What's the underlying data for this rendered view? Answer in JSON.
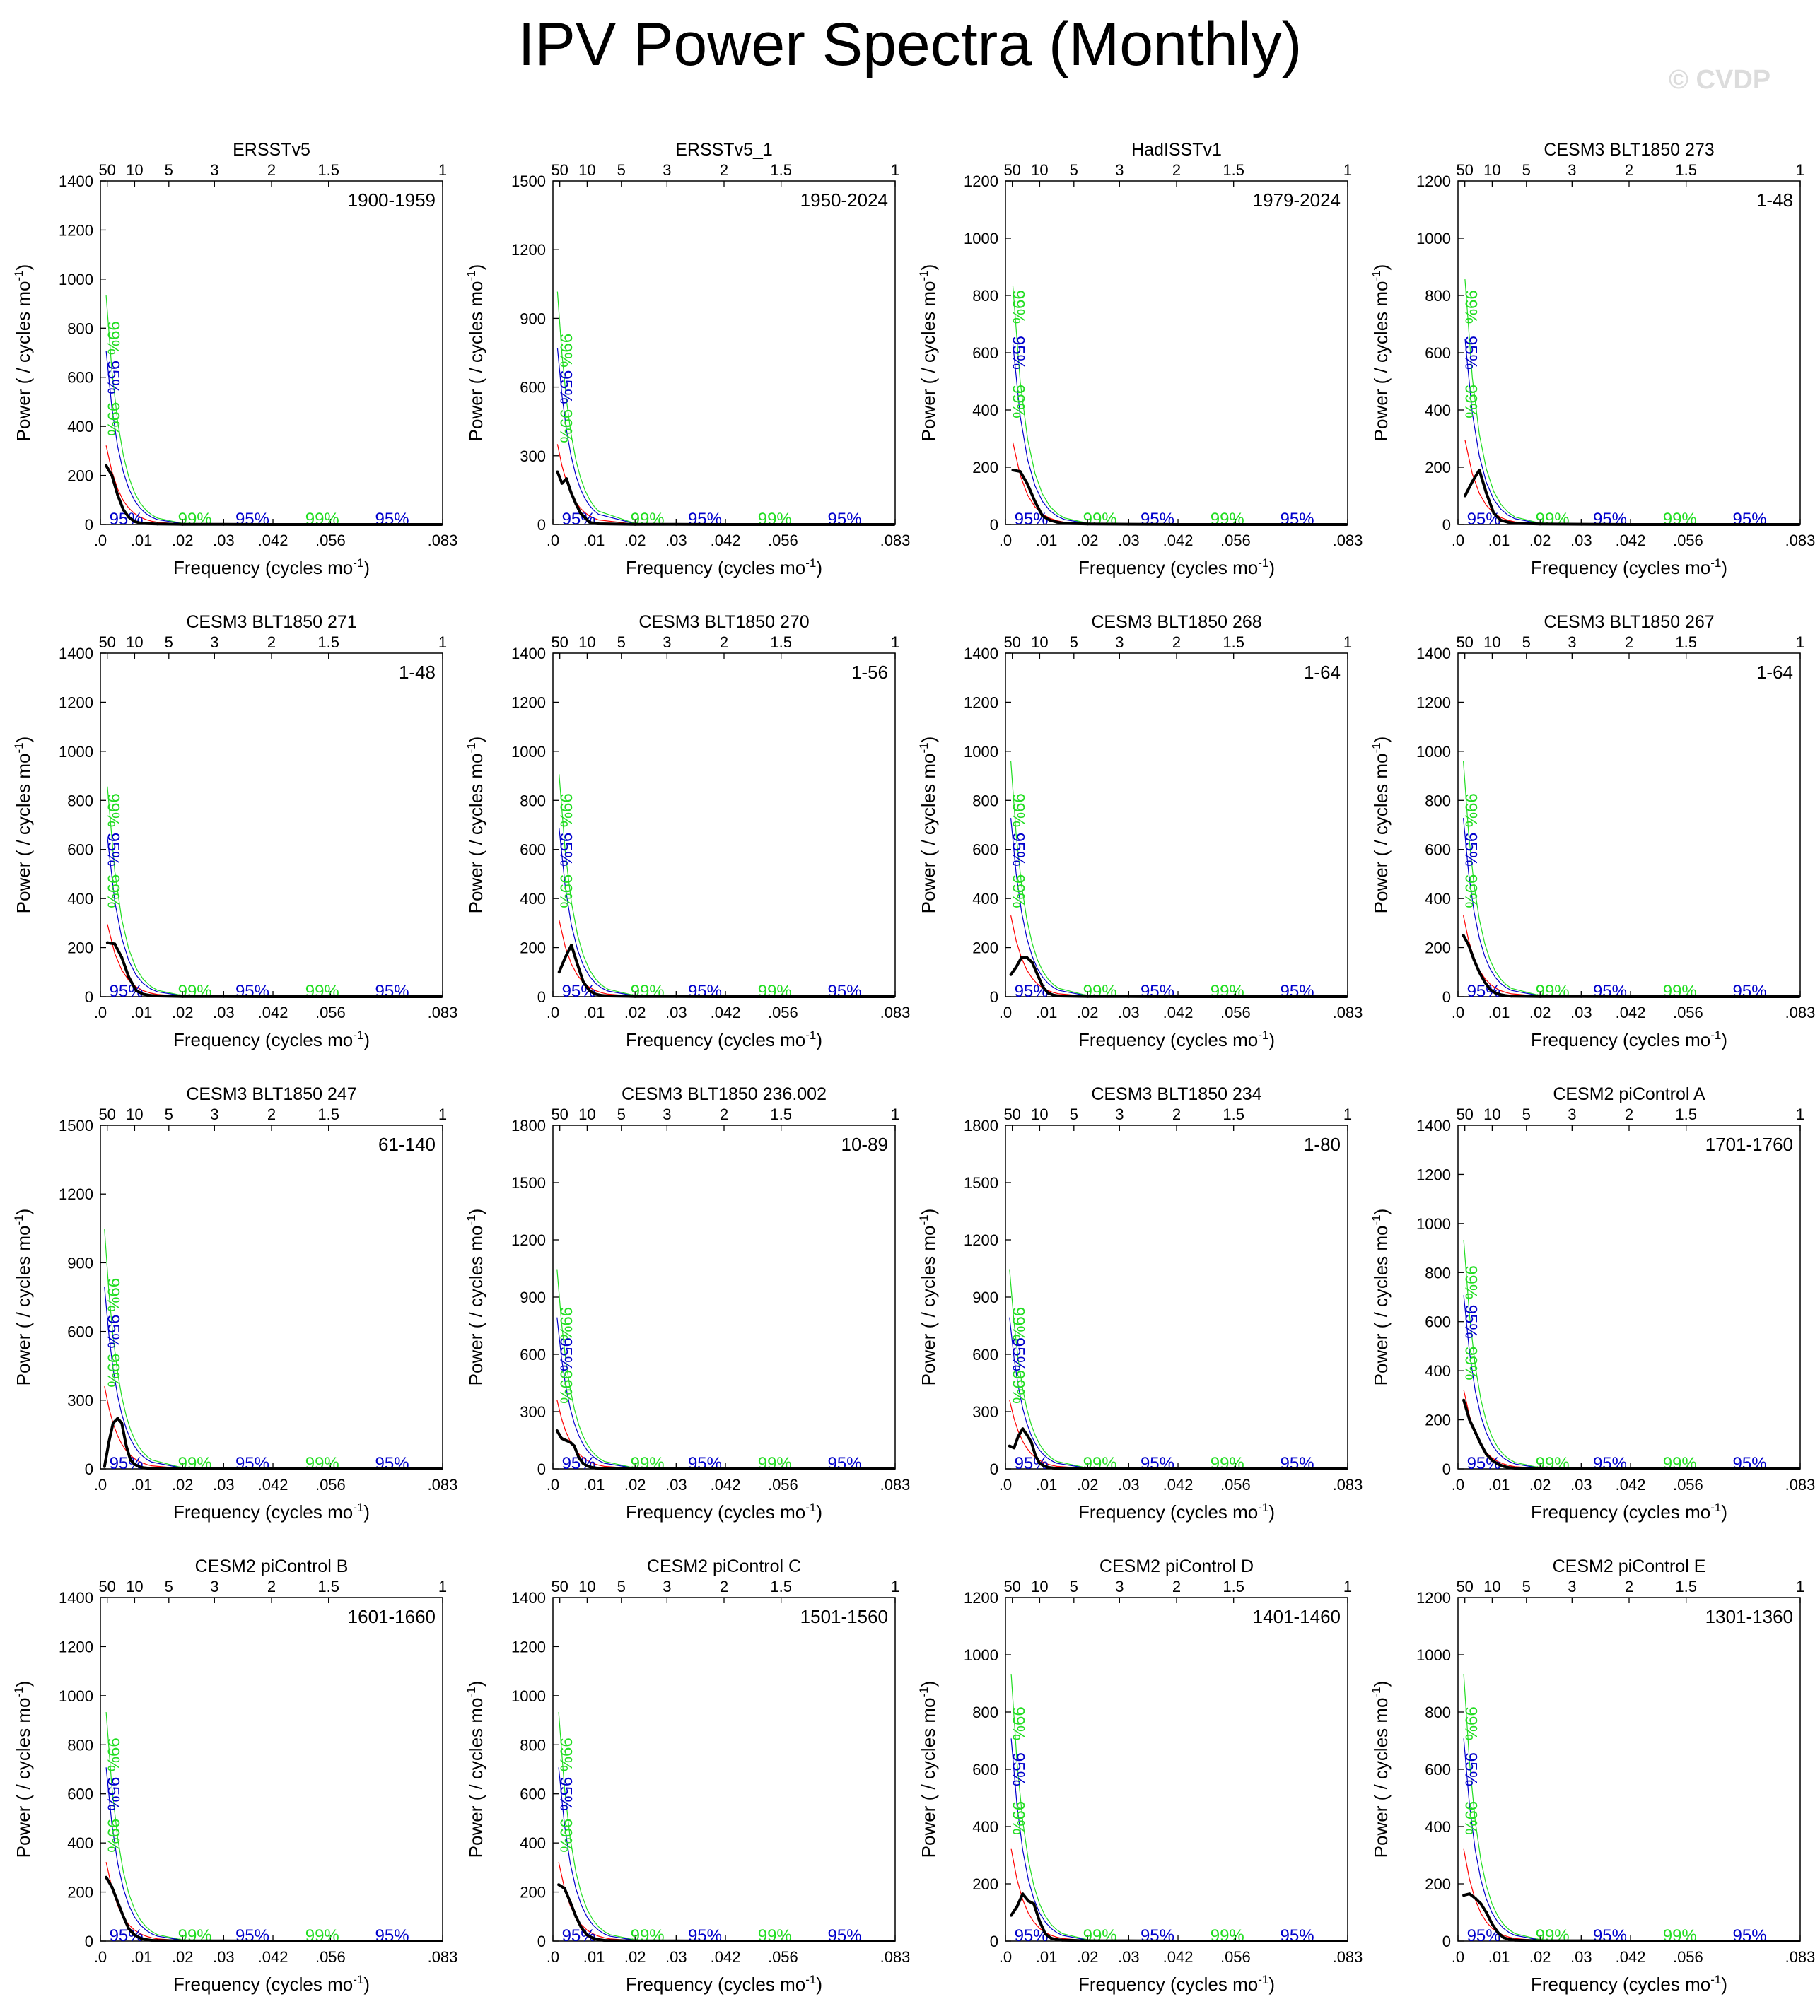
{
  "title": "IPV Power Spectra (Monthly)",
  "watermark": "© CVDP",
  "axis_labels": {
    "xlabel_main": "Frequency (cycles mo",
    "xlabel_sup": "-1",
    "xlabel_end": ")",
    "ylabel_main": "Power ( / cycles mo",
    "ylabel_sup": "-1",
    "ylabel_end": ")"
  },
  "x_ticks_bottom": [
    ".0",
    ".01",
    ".02",
    ".03",
    ".042",
    ".056",
    ".083"
  ],
  "x_ticks_top": [
    "50",
    "10",
    "5",
    "3",
    "2",
    "1.5",
    "1"
  ],
  "colors": {
    "spectrum": "#000000",
    "red_noise": "#ff0000",
    "conf95": "#0000cc",
    "conf99": "#22dd22"
  },
  "labels": {
    "c95": "95%",
    "c99": "99%"
  },
  "chart_data": [
    {
      "type": "line",
      "title": "ERSSTv5",
      "years": "1900-1959",
      "ylim": [
        0,
        1400
      ],
      "yticks": [
        0,
        200,
        400,
        600,
        800,
        1000,
        1200,
        1400
      ],
      "x": [
        0.0014,
        0.0028,
        0.0042,
        0.0056,
        0.0069,
        0.0083,
        0.0097,
        0.0111,
        0.0125,
        0.0139,
        0.02,
        0.03,
        0.042,
        0.056,
        0.083
      ],
      "power": [
        240,
        200,
        120,
        60,
        30,
        12,
        6,
        4,
        3,
        2,
        1,
        1,
        0,
        0,
        0
      ]
    },
    {
      "type": "line",
      "title": "ERSSTv5_1",
      "years": "1950-2024",
      "ylim": [
        0,
        1500
      ],
      "yticks": [
        0,
        300,
        600,
        900,
        1200,
        1500
      ],
      "x": [
        0.0011,
        0.0022,
        0.0033,
        0.0044,
        0.0056,
        0.0067,
        0.0078,
        0.0089,
        0.01,
        0.0111,
        0.02,
        0.03,
        0.042,
        0.056,
        0.083
      ],
      "power": [
        230,
        180,
        200,
        140,
        90,
        50,
        30,
        10,
        5,
        3,
        1,
        1,
        0,
        0,
        0
      ]
    },
    {
      "type": "line",
      "title": "HadISSTv1",
      "years": "1979-2024",
      "ylim": [
        0,
        1200
      ],
      "yticks": [
        0,
        200,
        400,
        600,
        800,
        1000,
        1200
      ],
      "x": [
        0.0018,
        0.0036,
        0.0054,
        0.0072,
        0.009,
        0.0108,
        0.0126,
        0.0144,
        0.02,
        0.03,
        0.042,
        0.056,
        0.083
      ],
      "power": [
        190,
        185,
        140,
        80,
        30,
        15,
        8,
        4,
        2,
        1,
        0,
        0,
        0
      ]
    },
    {
      "type": "line",
      "title": "CESM3 BLT1850 273",
      "years": "1-48",
      "ylim": [
        0,
        1200
      ],
      "yticks": [
        0,
        200,
        400,
        600,
        800,
        1000,
        1200
      ],
      "x": [
        0.0017,
        0.0035,
        0.0052,
        0.0069,
        0.0087,
        0.0104,
        0.0122,
        0.0139,
        0.02,
        0.03,
        0.042,
        0.056,
        0.083
      ],
      "power": [
        100,
        150,
        190,
        110,
        40,
        15,
        8,
        4,
        2,
        1,
        0,
        0,
        0
      ]
    },
    {
      "type": "line",
      "title": "CESM3 BLT1850 271",
      "years": "1-48",
      "ylim": [
        0,
        1400
      ],
      "yticks": [
        0,
        200,
        400,
        600,
        800,
        1000,
        1200,
        1400
      ],
      "x": [
        0.0017,
        0.0035,
        0.0052,
        0.0069,
        0.0087,
        0.0104,
        0.0122,
        0.0139,
        0.02,
        0.03,
        0.042,
        0.056,
        0.083
      ],
      "power": [
        220,
        215,
        160,
        80,
        25,
        10,
        5,
        3,
        1,
        1,
        0,
        0,
        0
      ]
    },
    {
      "type": "line",
      "title": "CESM3 BLT1850 270",
      "years": "1-56",
      "ylim": [
        0,
        1400
      ],
      "yticks": [
        0,
        200,
        400,
        600,
        800,
        1000,
        1200,
        1400
      ],
      "x": [
        0.0015,
        0.003,
        0.0045,
        0.006,
        0.0074,
        0.0089,
        0.0104,
        0.0119,
        0.0134,
        0.02,
        0.03,
        0.042,
        0.056,
        0.083
      ],
      "power": [
        100,
        160,
        210,
        130,
        60,
        25,
        10,
        5,
        3,
        1,
        1,
        0,
        0,
        0
      ]
    },
    {
      "type": "line",
      "title": "CESM3 BLT1850 268",
      "years": "1-64",
      "ylim": [
        0,
        1400
      ],
      "yticks": [
        0,
        200,
        400,
        600,
        800,
        1000,
        1200,
        1400
      ],
      "x": [
        0.0013,
        0.0026,
        0.0039,
        0.0052,
        0.0065,
        0.0078,
        0.0091,
        0.0104,
        0.0117,
        0.013,
        0.02,
        0.03,
        0.042,
        0.056,
        0.083
      ],
      "power": [
        90,
        120,
        160,
        160,
        140,
        90,
        40,
        15,
        6,
        3,
        1,
        1,
        0,
        0,
        0
      ]
    },
    {
      "type": "line",
      "title": "CESM3 BLT1850 267",
      "years": "1-64",
      "ylim": [
        0,
        1400
      ],
      "yticks": [
        0,
        200,
        400,
        600,
        800,
        1000,
        1200,
        1400
      ],
      "x": [
        0.0013,
        0.0026,
        0.0039,
        0.0052,
        0.0065,
        0.0078,
        0.0091,
        0.0104,
        0.0117,
        0.013,
        0.02,
        0.03,
        0.042,
        0.056,
        0.083
      ],
      "power": [
        250,
        210,
        150,
        100,
        60,
        30,
        15,
        8,
        4,
        2,
        1,
        1,
        0,
        0,
        0
      ]
    },
    {
      "type": "line",
      "title": "CESM3 BLT1850 247",
      "years": "61-140",
      "ylim": [
        0,
        1500
      ],
      "yticks": [
        0,
        300,
        600,
        900,
        1200,
        1500
      ],
      "x": [
        0.001,
        0.0021,
        0.0031,
        0.0042,
        0.0052,
        0.0063,
        0.0073,
        0.0083,
        0.0094,
        0.0104,
        0.0115,
        0.0125,
        0.02,
        0.03,
        0.042,
        0.056,
        0.083
      ],
      "power": [
        10,
        120,
        200,
        220,
        200,
        100,
        40,
        20,
        10,
        5,
        3,
        2,
        1,
        1,
        0,
        0,
        0
      ]
    },
    {
      "type": "line",
      "title": "CESM3 BLT1850 236.002",
      "years": "10-89",
      "ylim": [
        0,
        1800
      ],
      "yticks": [
        0,
        300,
        600,
        900,
        1200,
        1500,
        1800
      ],
      "x": [
        0.001,
        0.0021,
        0.0031,
        0.0042,
        0.0052,
        0.0063,
        0.0073,
        0.0083,
        0.0094,
        0.0104,
        0.0115,
        0.0125,
        0.02,
        0.03,
        0.042,
        0.056,
        0.083
      ],
      "power": [
        200,
        160,
        150,
        140,
        120,
        60,
        30,
        15,
        8,
        5,
        3,
        2,
        1,
        1,
        0,
        0,
        0
      ]
    },
    {
      "type": "line",
      "title": "CESM3 BLT1850 234",
      "years": "1-80",
      "ylim": [
        0,
        1800
      ],
      "yticks": [
        0,
        300,
        600,
        900,
        1200,
        1500,
        1800
      ],
      "x": [
        0.001,
        0.0021,
        0.0031,
        0.0042,
        0.0052,
        0.0063,
        0.0073,
        0.0083,
        0.0094,
        0.0104,
        0.0115,
        0.0125,
        0.02,
        0.03,
        0.042,
        0.056,
        0.083
      ],
      "power": [
        120,
        110,
        170,
        210,
        180,
        140,
        70,
        30,
        15,
        8,
        5,
        3,
        1,
        1,
        0,
        0,
        0
      ]
    },
    {
      "type": "line",
      "title": "CESM2 piControl A",
      "years": "1701-1760",
      "ylim": [
        0,
        1400
      ],
      "yticks": [
        0,
        200,
        400,
        600,
        800,
        1000,
        1200,
        1400
      ],
      "x": [
        0.0014,
        0.0028,
        0.0042,
        0.0056,
        0.0069,
        0.0083,
        0.0097,
        0.0111,
        0.0125,
        0.0139,
        0.02,
        0.03,
        0.042,
        0.056,
        0.083
      ],
      "power": [
        280,
        200,
        150,
        100,
        60,
        35,
        20,
        10,
        5,
        3,
        1,
        1,
        0,
        0,
        0
      ]
    },
    {
      "type": "line",
      "title": "CESM2 piControl B",
      "years": "1601-1660",
      "ylim": [
        0,
        1400
      ],
      "yticks": [
        0,
        200,
        400,
        600,
        800,
        1000,
        1200,
        1400
      ],
      "x": [
        0.0014,
        0.0028,
        0.0042,
        0.0056,
        0.0069,
        0.0083,
        0.0097,
        0.0111,
        0.0125,
        0.0139,
        0.02,
        0.03,
        0.042,
        0.056,
        0.083
      ],
      "power": [
        260,
        220,
        160,
        100,
        50,
        25,
        12,
        6,
        3,
        2,
        1,
        1,
        0,
        0,
        0
      ]
    },
    {
      "type": "line",
      "title": "CESM2 piControl C",
      "years": "1501-1560",
      "ylim": [
        0,
        1400
      ],
      "yticks": [
        0,
        200,
        400,
        600,
        800,
        1000,
        1200,
        1400
      ],
      "x": [
        0.0014,
        0.0028,
        0.0042,
        0.0056,
        0.0069,
        0.0083,
        0.0097,
        0.0111,
        0.0125,
        0.0139,
        0.02,
        0.03,
        0.042,
        0.056,
        0.083
      ],
      "power": [
        230,
        215,
        160,
        100,
        55,
        25,
        12,
        6,
        3,
        2,
        1,
        1,
        0,
        0,
        0
      ]
    },
    {
      "type": "line",
      "title": "CESM2 piControl D",
      "years": "1401-1460",
      "ylim": [
        0,
        1200
      ],
      "yticks": [
        0,
        200,
        400,
        600,
        800,
        1000,
        1200
      ],
      "x": [
        0.0014,
        0.0028,
        0.0042,
        0.0056,
        0.0069,
        0.0083,
        0.0097,
        0.0111,
        0.0125,
        0.0139,
        0.02,
        0.03,
        0.042,
        0.056,
        0.083
      ],
      "power": [
        90,
        120,
        165,
        140,
        130,
        70,
        25,
        10,
        5,
        3,
        1,
        1,
        0,
        0,
        0
      ]
    },
    {
      "type": "line",
      "title": "CESM2 piControl E",
      "years": "1301-1360",
      "ylim": [
        0,
        1200
      ],
      "yticks": [
        0,
        200,
        400,
        600,
        800,
        1000,
        1200
      ],
      "x": [
        0.0014,
        0.0028,
        0.0042,
        0.0056,
        0.0069,
        0.0083,
        0.0097,
        0.0111,
        0.0125,
        0.0139,
        0.02,
        0.03,
        0.042,
        0.056,
        0.083
      ],
      "power": [
        160,
        165,
        150,
        130,
        100,
        60,
        30,
        12,
        6,
        3,
        1,
        1,
        0,
        0,
        0
      ]
    }
  ]
}
